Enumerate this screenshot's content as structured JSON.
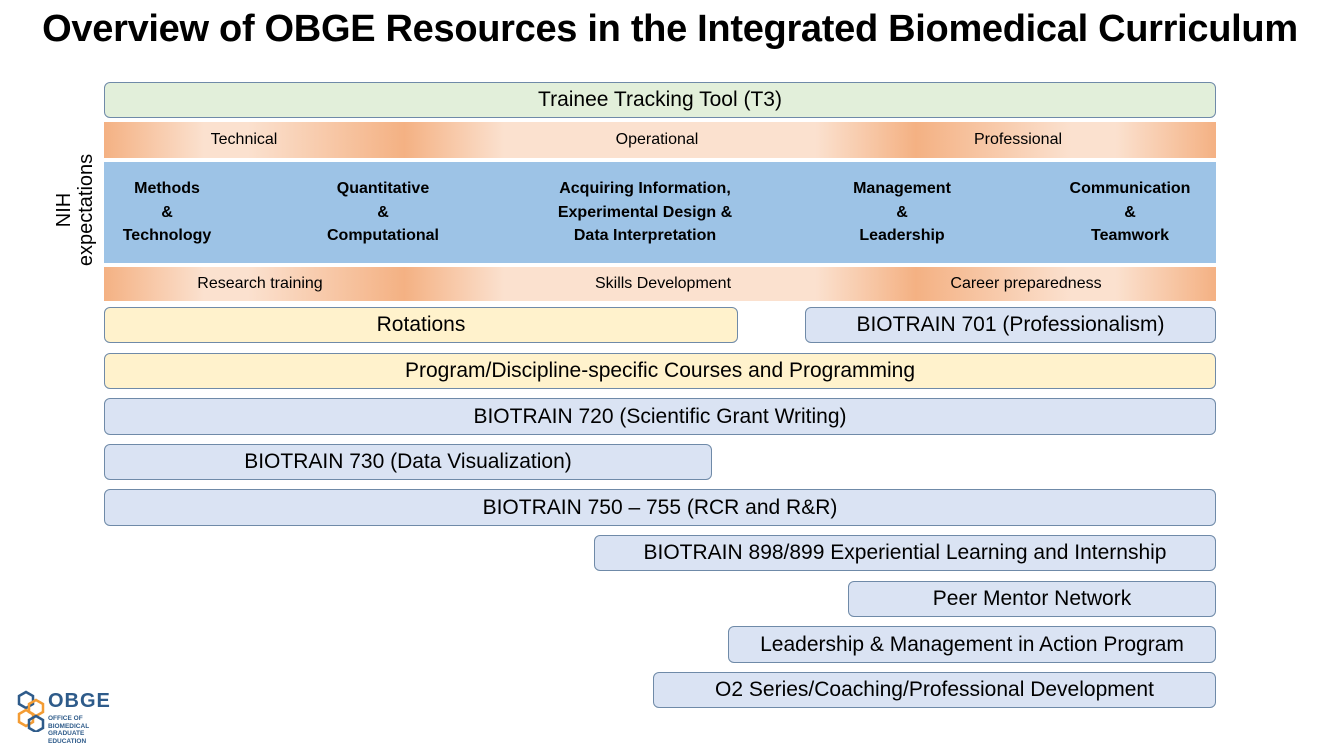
{
  "title": "Overview of OBGE Resources in the Integrated Biomedical Curriculum",
  "side_label": {
    "line1": "NIH",
    "line2": "expectations"
  },
  "t3": "Trainee Tracking Tool (T3)",
  "top_band": [
    "Technical",
    "Operational",
    "Professional"
  ],
  "nih_columns": [
    [
      "Methods",
      "&",
      "Technology"
    ],
    [
      "Quantitative",
      "&",
      "Computational"
    ],
    [
      "Acquiring Information,",
      "Experimental Design  &",
      "Data Interpretation"
    ],
    [
      "Management",
      "&",
      "Leadership"
    ],
    [
      "Communication",
      "&",
      "Teamwork"
    ]
  ],
  "bottom_band": [
    "Research training",
    "Skills Development",
    "Career preparedness"
  ],
  "resources": {
    "rotations": "Rotations",
    "biotrain_701": "BIOTRAIN 701 (Professionalism)",
    "program_courses": "Program/Discipline-specific Courses and Programming",
    "biotrain_720": "BIOTRAIN 720 (Scientific Grant Writing)",
    "biotrain_730": "BIOTRAIN 730 (Data Visualization)",
    "biotrain_750": "BIOTRAIN 750 – 755 (RCR and R&R)",
    "biotrain_898": "BIOTRAIN 898/899 Experiential Learning and Internship",
    "peer_mentor": "Peer Mentor Network",
    "leadership_program": "Leadership & Management in Action Program",
    "o2_series": "O2 Series/Coaching/Professional Development"
  },
  "logo": {
    "word": "OBGE",
    "sub1": "OFFICE OF BIOMEDICAL",
    "sub2": "GRADUATE EDUCATION",
    "colors": {
      "orange": "#f39c34",
      "blue": "#2e5b8a"
    }
  }
}
